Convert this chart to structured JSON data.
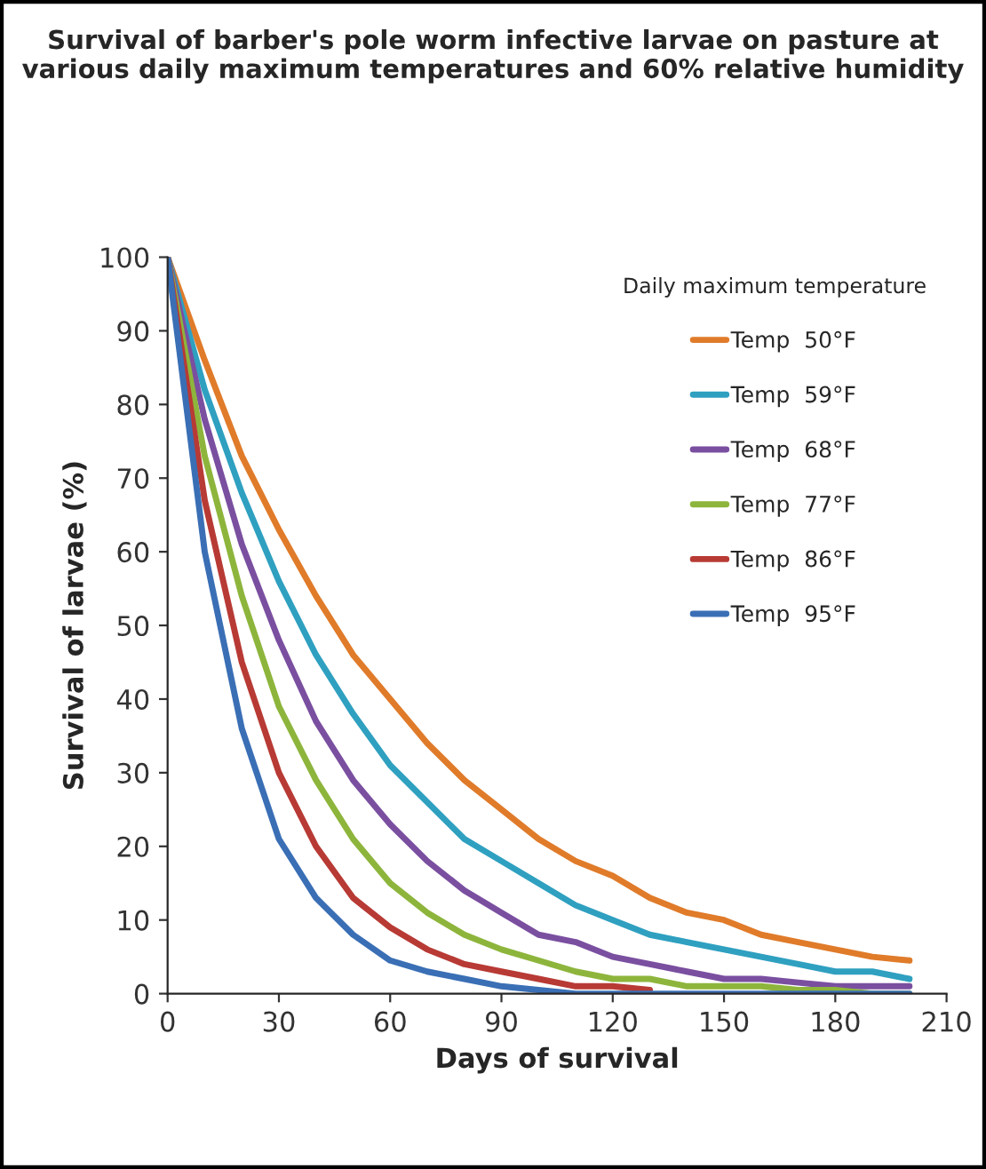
{
  "chart_data": {
    "type": "line",
    "title": "Survival of barber's pole worm infective larvae on pasture at various daily maximum temperatures and 60% relative humidity",
    "xlabel": "Days of survival",
    "ylabel": "Survival of larvae (%)",
    "legend_title": "Daily maximum temperature",
    "x": [
      0,
      10,
      20,
      30,
      40,
      50,
      60,
      70,
      80,
      90,
      100,
      110,
      120,
      130,
      140,
      150,
      160,
      170,
      180,
      190,
      200
    ],
    "series": [
      {
        "name": "Temp  50°F",
        "color": "#e07b2a",
        "values": [
          100,
          86,
          73,
          63,
          54,
          46,
          40,
          34,
          29,
          25,
          21,
          18,
          16,
          13,
          11,
          10,
          8,
          7,
          6,
          5,
          4.5
        ]
      },
      {
        "name": "Temp  59°F",
        "color": "#2fa0c0",
        "values": [
          100,
          82,
          68,
          56,
          46,
          38,
          31,
          26,
          21,
          18,
          15,
          12,
          10,
          8,
          7,
          6,
          5,
          4,
          3,
          3,
          2
        ]
      },
      {
        "name": "Temp  68°F",
        "color": "#7a4fa0",
        "values": [
          100,
          78,
          61,
          48,
          37,
          29,
          23,
          18,
          14,
          11,
          8,
          7,
          5,
          4,
          3,
          2,
          2,
          1.5,
          1,
          1,
          1
        ]
      },
      {
        "name": "Temp  77°F",
        "color": "#8db53c",
        "values": [
          100,
          73,
          54,
          39,
          29,
          21,
          15,
          11,
          8,
          6,
          4.5,
          3,
          2,
          2,
          1,
          1,
          1,
          0.5,
          0.5,
          0,
          0
        ]
      },
      {
        "name": "Temp  86°F",
        "color": "#b83a35",
        "values": [
          100,
          67,
          45,
          30,
          20,
          13,
          9,
          6,
          4,
          3,
          2,
          1,
          1,
          0.5,
          null,
          null,
          null,
          null,
          null,
          null,
          null
        ]
      },
      {
        "name": "Temp  95°F",
        "color": "#3a6fb5",
        "values": [
          100,
          60,
          36,
          21,
          13,
          8,
          4.5,
          3,
          2,
          1,
          0.5,
          0,
          0,
          0,
          0,
          0,
          0,
          0,
          0,
          0,
          0
        ]
      }
    ],
    "xlim": [
      0,
      210
    ],
    "xticks": [
      0,
      30,
      60,
      90,
      120,
      150,
      180,
      210
    ],
    "ylim": [
      0,
      100
    ],
    "yticks": [
      0,
      10,
      20,
      30,
      40,
      50,
      60,
      70,
      80,
      90,
      100
    ],
    "grid": false,
    "legend": "top right",
    "marker": "none",
    "line_style": "solid"
  }
}
